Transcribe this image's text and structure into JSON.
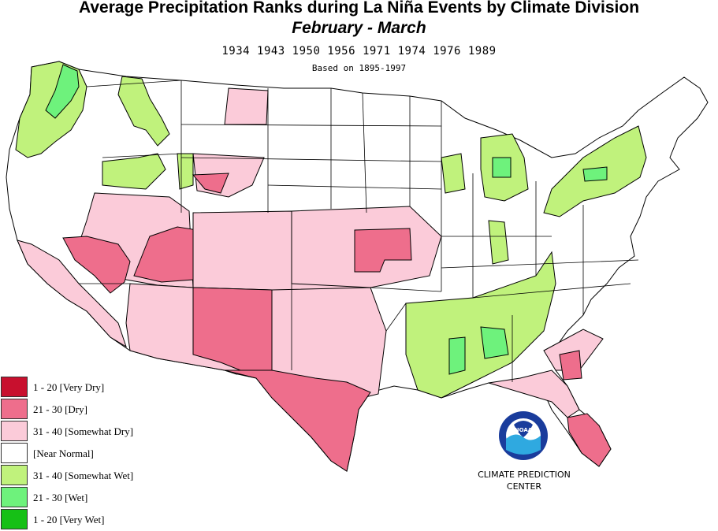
{
  "header": {
    "title": "Average Precipitation Ranks during La  Niña Events by Climate Division",
    "subtitle": "February  -  March",
    "years": "1934 1943 1950 1956 1971 1974 1976 1989",
    "based_on": "Based on 1895-1997"
  },
  "colors": {
    "very_dry": "#c8102e",
    "dry": "#ee6e8c",
    "somewhat_dry": "#fbcbd9",
    "near_normal": "#ffffff",
    "somewhat_wet": "#c0f27c",
    "wet": "#6ef27c",
    "very_wet": "#16c016",
    "boundary": "#000000"
  },
  "legend": [
    {
      "label": "1 - 20 [Very Dry]",
      "color": "#c8102e"
    },
    {
      "label": "21 - 30 [Dry]",
      "color": "#ee6e8c"
    },
    {
      "label": "31 - 40 [Somewhat Dry]",
      "color": "#fbcbd9"
    },
    {
      "label": " [Near Normal]",
      "color": "#ffffff"
    },
    {
      "label": "31 - 40 [Somewhat Wet]",
      "color": "#c0f27c"
    },
    {
      "label": "21 - 30 [Wet]",
      "color": "#6ef27c"
    },
    {
      "label": "1 - 20 [Very Wet]",
      "color": "#16c016"
    }
  ],
  "logo": {
    "text": "NOAA",
    "icon": "noaa-logo-icon"
  },
  "credit": {
    "line1": "CLIMATE PREDICTION",
    "line2": "CENTER"
  }
}
